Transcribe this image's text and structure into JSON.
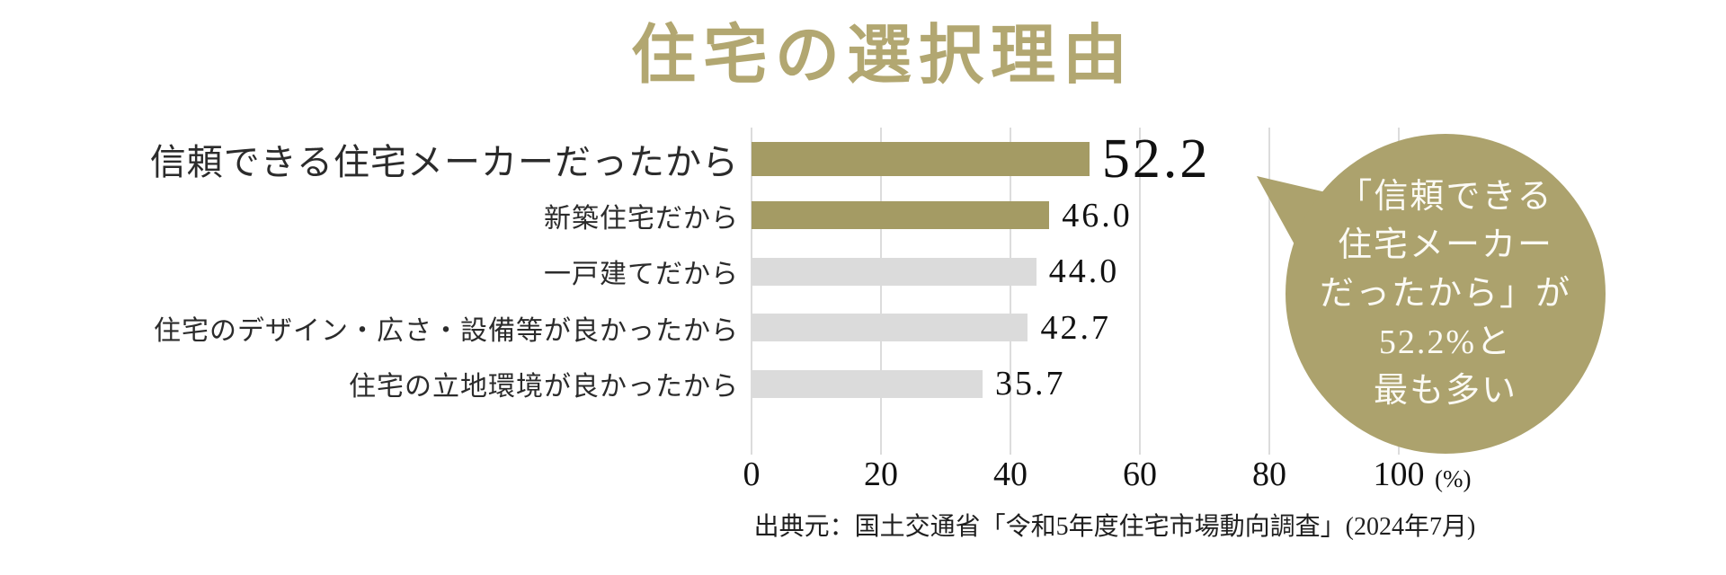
{
  "title": "住宅の選択理由",
  "chart_data": {
    "type": "bar",
    "orientation": "horizontal",
    "title": "住宅の選択理由",
    "categories": [
      "信頼できる住宅メーカーだったから",
      "新築住宅だから",
      "一戸建てだから",
      "住宅のデザイン・広さ・設備等が良かったから",
      "住宅の立地環境が良かったから"
    ],
    "values": [
      52.2,
      46.0,
      44.0,
      42.7,
      35.7
    ],
    "value_labels": [
      "52.2",
      "46.0",
      "44.0",
      "42.7",
      "35.7"
    ],
    "bar_styles": [
      "olive",
      "olive",
      "gray",
      "gray",
      "gray"
    ],
    "emphasized_index": 0,
    "x_ticks": [
      "0",
      "20",
      "40",
      "60",
      "80",
      "100"
    ],
    "x_tick_values": [
      0,
      20,
      40,
      60,
      80,
      100
    ],
    "xlim": [
      0,
      100
    ],
    "unit": "(%)",
    "grid": true,
    "legend": false
  },
  "callout": {
    "lines": [
      "「信頼できる",
      "住宅メーカー",
      "だったから」が",
      "52.2%と",
      "最も多い"
    ]
  },
  "source": "出典元：国土交通省「令和5年度住宅市場動向調査」(2024年7月)",
  "colors": {
    "title_olive": "#B2A771",
    "bar_olive": "#A49B64",
    "bar_gray": "#DBDBDB",
    "bubble_olive": "#ACA26D",
    "bubble_text": "#FBFAF4",
    "gridline": "#DCDCDC",
    "label_text": "#2B2B2B",
    "value_text": "#111111"
  }
}
